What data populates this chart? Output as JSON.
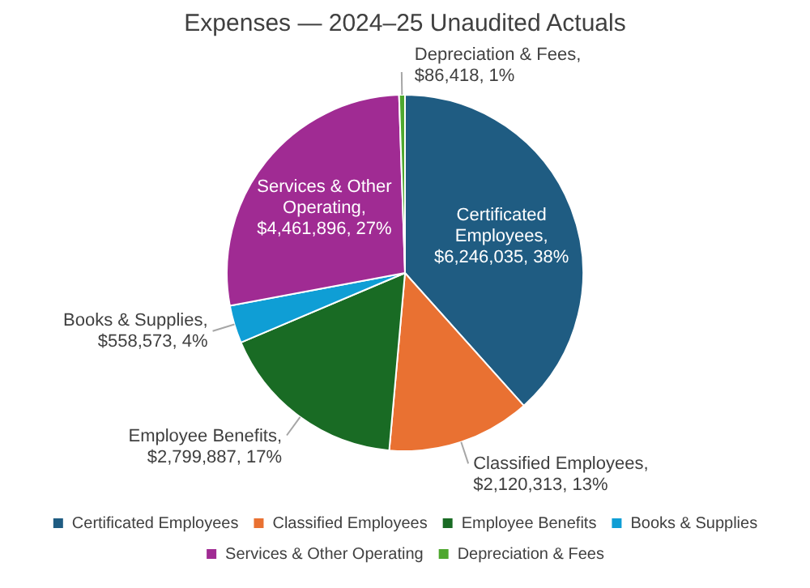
{
  "chart_data": {
    "type": "pie",
    "title": "Expenses — 2024–25 Unaudited Actuals",
    "categories": [
      "Certificated Employees",
      "Classified Employees",
      "Employee Benefits",
      "Books & Supplies",
      "Services & Other Operating",
      "Depreciation & Fees"
    ],
    "values": [
      6246035,
      2120313,
      2799887,
      558573,
      4461896,
      86418
    ],
    "colors": [
      "#1f5c82",
      "#e97132",
      "#196b24",
      "#0f9ed5",
      "#a02b93",
      "#4ea72e"
    ],
    "value_labels": [
      "Certificated Employees, $6,246,035, 38%",
      "Classified Employees, $2,120,313, 13%",
      "Employee Benefits, $2,799,887, 17%",
      "Books & Supplies, $558,573, 4%",
      "Services & Other Operating, $4,461,896, 27%",
      "Depreciation & Fees, $86,418, 1%"
    ],
    "legend": "bottom"
  }
}
